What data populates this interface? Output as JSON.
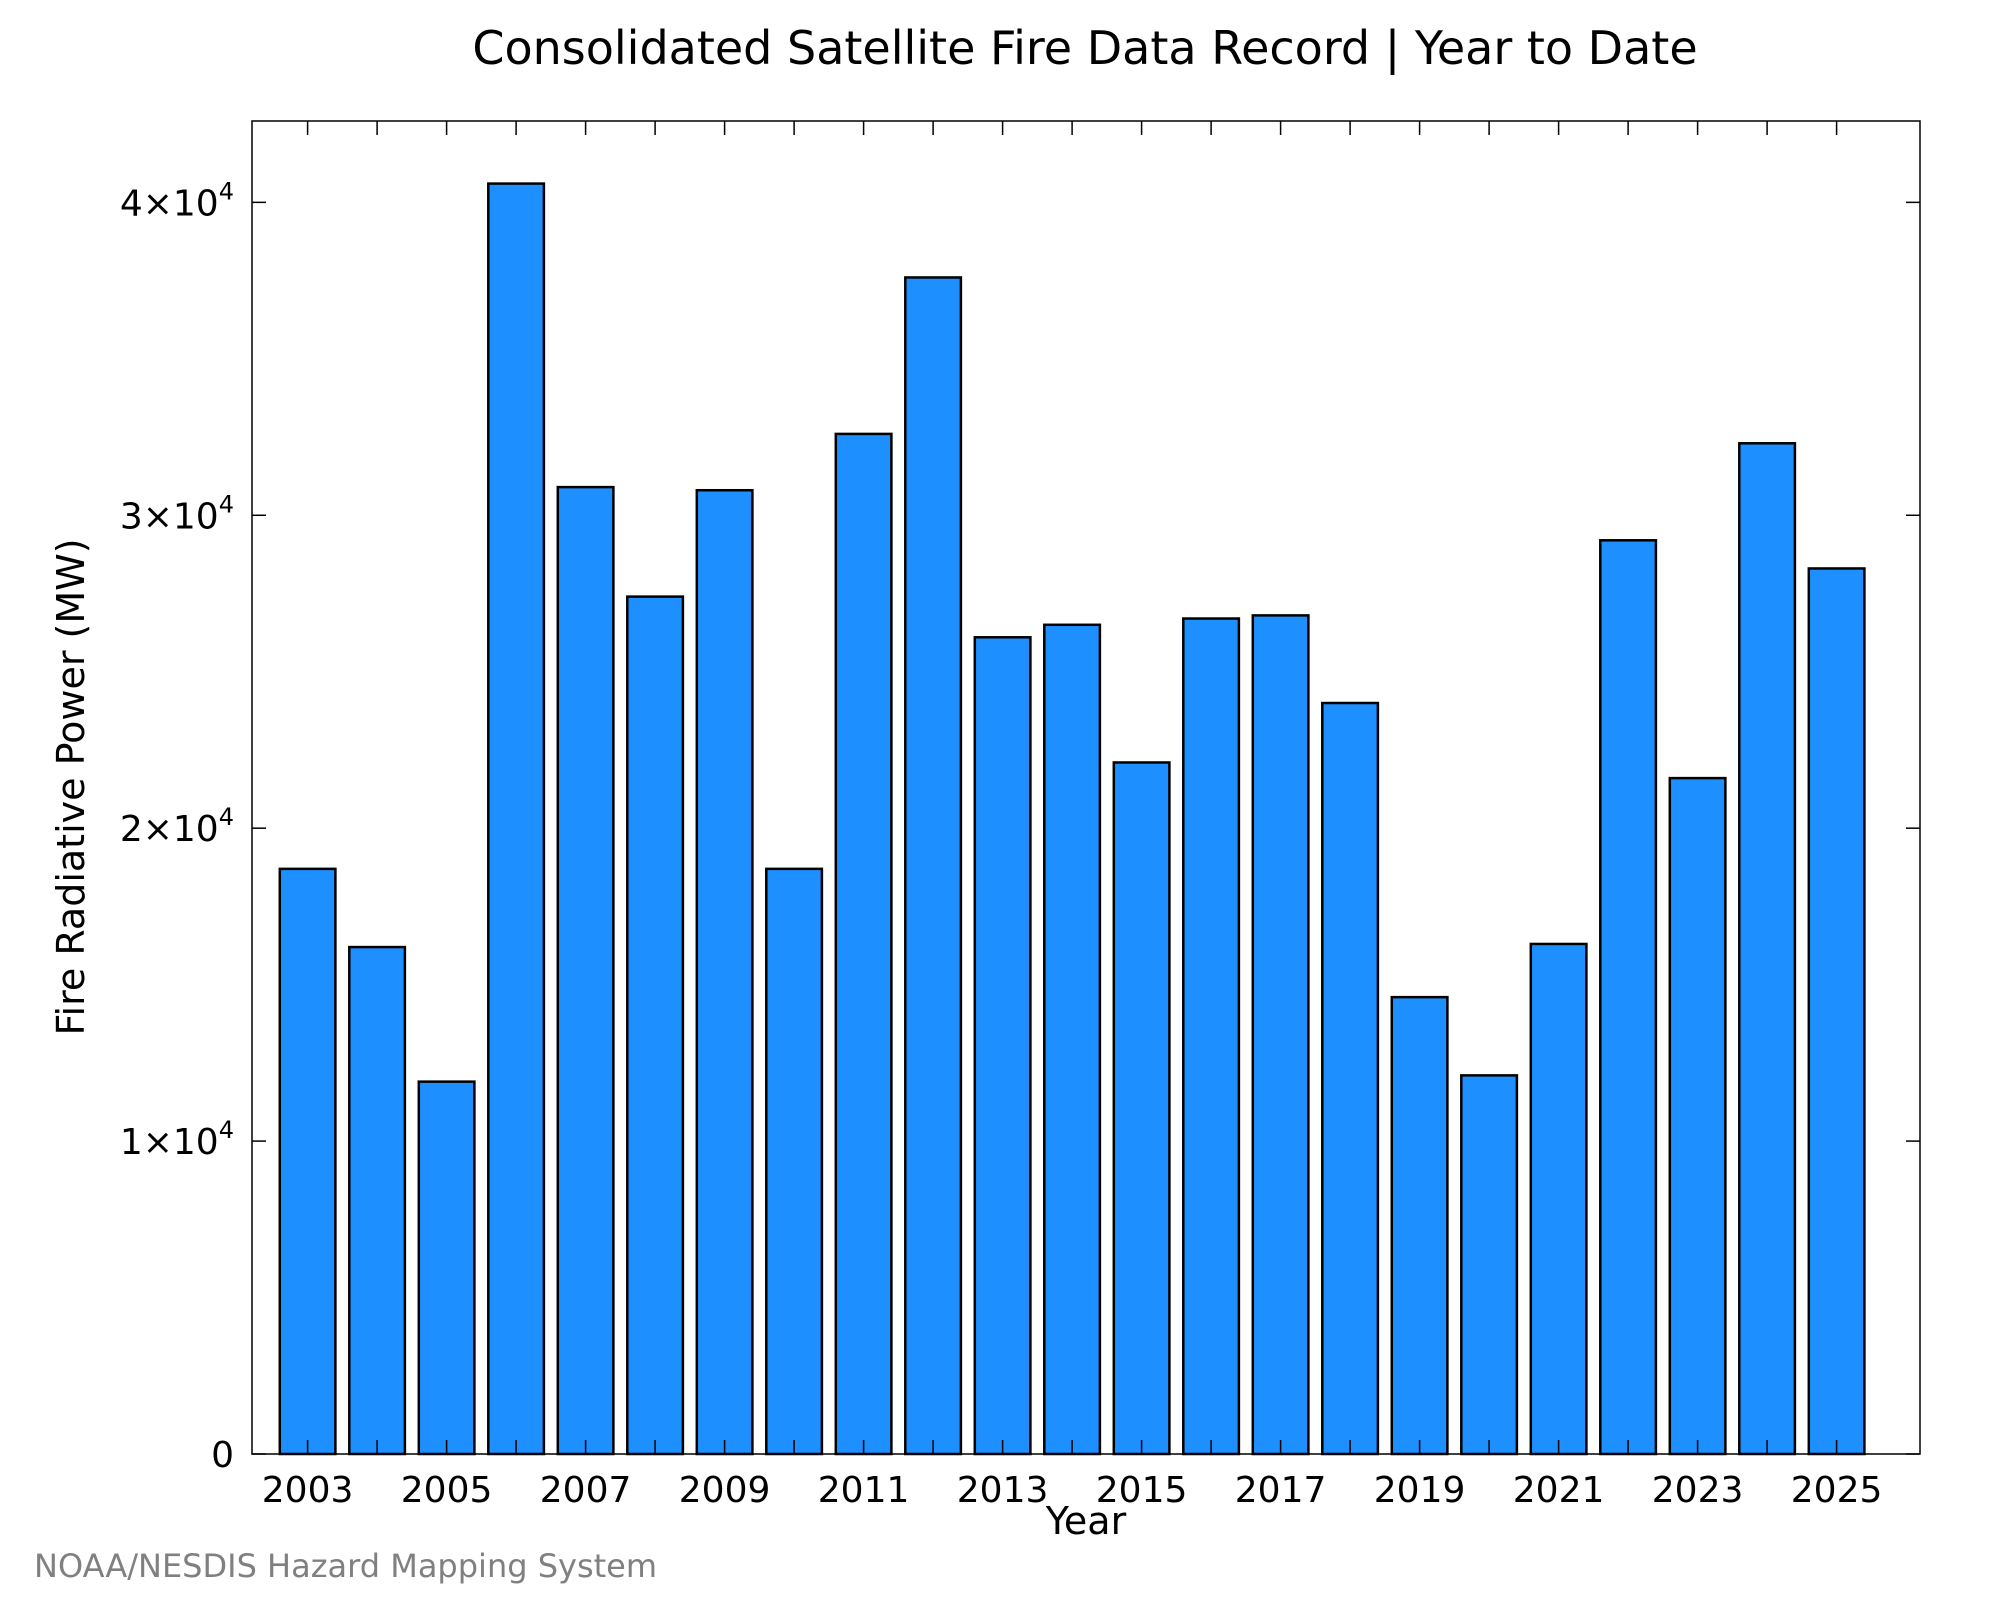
{
  "chart_data": {
    "type": "bar",
    "title": "Consolidated Satellite Fire Data Record | Year to Date",
    "xlabel": "Year",
    "ylabel": "Fire Radiative Power (MW)",
    "categories": [
      2003,
      2004,
      2005,
      2006,
      2007,
      2008,
      2009,
      2010,
      2011,
      2012,
      2013,
      2014,
      2015,
      2016,
      2017,
      2018,
      2019,
      2020,
      2021,
      2022,
      2023,
      2024,
      2025
    ],
    "values": [
      18700,
      16200,
      11900,
      40600,
      30900,
      27400,
      30800,
      18700,
      32600,
      37600,
      26100,
      26500,
      22100,
      26700,
      26800,
      24000,
      14600,
      12100,
      16300,
      29200,
      21600,
      32300,
      28300
    ],
    "x_tick_labels": [
      "2003",
      "2005",
      "2007",
      "2009",
      "2011",
      "2013",
      "2015",
      "2017",
      "2019",
      "2021",
      "2023",
      "2025"
    ],
    "y_ticks": [
      {
        "value": 0,
        "mantissa": "0",
        "exp": ""
      },
      {
        "value": 10000,
        "mantissa": "1×10",
        "exp": "4"
      },
      {
        "value": 20000,
        "mantissa": "2×10",
        "exp": "4"
      },
      {
        "value": 30000,
        "mantissa": "3×10",
        "exp": "4"
      },
      {
        "value": 40000,
        "mantissa": "4×10",
        "exp": "4"
      }
    ],
    "ylim": [
      0,
      42600
    ],
    "xlim": [
      2002.2,
      2026.2
    ],
    "bar_color": "#1e8fff",
    "bar_edge_color": "#000000",
    "grid": false,
    "legend": "none"
  },
  "credit": "NOAA/NESDIS Hazard Mapping System"
}
